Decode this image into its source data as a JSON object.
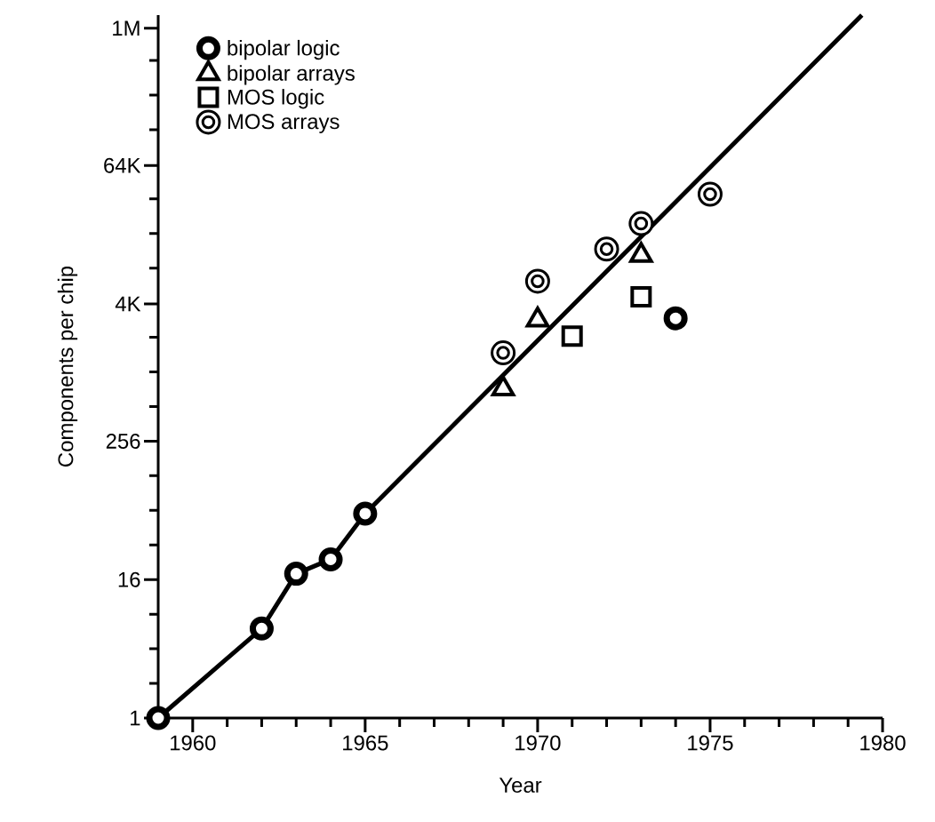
{
  "chart_data": {
    "type": "scatter",
    "xlabel": "Year",
    "ylabel": "Components per chip",
    "log": "y",
    "legend": "top left",
    "xlim": [
      1959,
      1980
    ],
    "ylim": [
      1,
      1300000
    ],
    "xticks": [
      1960,
      {
        "value": 1961,
        "label": null
      },
      {
        "value": 1962,
        "label": null
      },
      {
        "value": 1963,
        "label": null
      },
      {
        "value": 1964,
        "label": null
      },
      1965,
      {
        "value": 1966,
        "label": null
      },
      {
        "value": 1967,
        "label": null
      },
      {
        "value": 1968,
        "label": null
      },
      {
        "value": 1969,
        "label": null
      },
      1970,
      {
        "value": 1971,
        "label": null
      },
      {
        "value": 1972,
        "label": null
      },
      {
        "value": 1973,
        "label": null
      },
      {
        "value": 1974,
        "label": null
      },
      1975,
      {
        "value": 1976,
        "label": null
      },
      {
        "value": 1977,
        "label": null
      },
      {
        "value": 1978,
        "label": null
      },
      {
        "value": 1979,
        "label": null
      },
      1980
    ],
    "yticks": [
      1,
      {
        "value": 2,
        "label": null
      },
      {
        "value": 4,
        "label": null
      },
      {
        "value": 8,
        "label": null
      },
      16,
      {
        "value": 32,
        "label": null
      },
      {
        "value": 64,
        "label": null
      },
      {
        "value": 128,
        "label": null
      },
      256,
      {
        "value": 512,
        "label": null
      },
      {
        "value": 1024,
        "label": null
      },
      {
        "value": 2048,
        "label": null
      },
      {
        "value": 4000,
        "label": "4K"
      },
      {
        "value": 8192,
        "label": null
      },
      {
        "value": 16384,
        "label": null
      },
      {
        "value": 32768,
        "label": null
      },
      {
        "value": 64000,
        "label": "64K"
      },
      {
        "value": 131072,
        "label": null
      },
      {
        "value": 262144,
        "label": null
      },
      {
        "value": 524288,
        "label": null
      },
      {
        "value": 1000000,
        "label": "1M"
      }
    ],
    "series": [
      {
        "type": "line",
        "color": "#000000",
        "marker": "none",
        "line_style": "solid",
        "x": [
          1959,
          1962,
          1963,
          1964,
          1965,
          1979.4
        ],
        "values": [
          1,
          6,
          18,
          24,
          60,
          1300000
        ]
      },
      {
        "name": "bipolar logic",
        "color": "#000000",
        "marker": "circle",
        "x": [
          1959,
          1962,
          1963,
          1964,
          1965,
          1974
        ],
        "values": [
          1,
          6,
          18,
          24,
          60,
          3000
        ]
      },
      {
        "name": "bipolar arrays",
        "color": "#000000",
        "marker": "triangle",
        "x": [
          1969,
          1970,
          1973
        ],
        "values": [
          730,
          2900,
          10600
        ]
      },
      {
        "name": "MOS logic",
        "color": "#000000",
        "marker": "square",
        "x": [
          1971,
          1973
        ],
        "values": [
          2100,
          4600
        ]
      },
      {
        "name": "MOS arrays",
        "color": "#000000",
        "marker": "circle",
        "x": [
          1969,
          1970,
          1972,
          1973,
          1975
        ],
        "values": [
          1500,
          6300,
          12000,
          20000,
          36000
        ]
      }
    ]
  }
}
